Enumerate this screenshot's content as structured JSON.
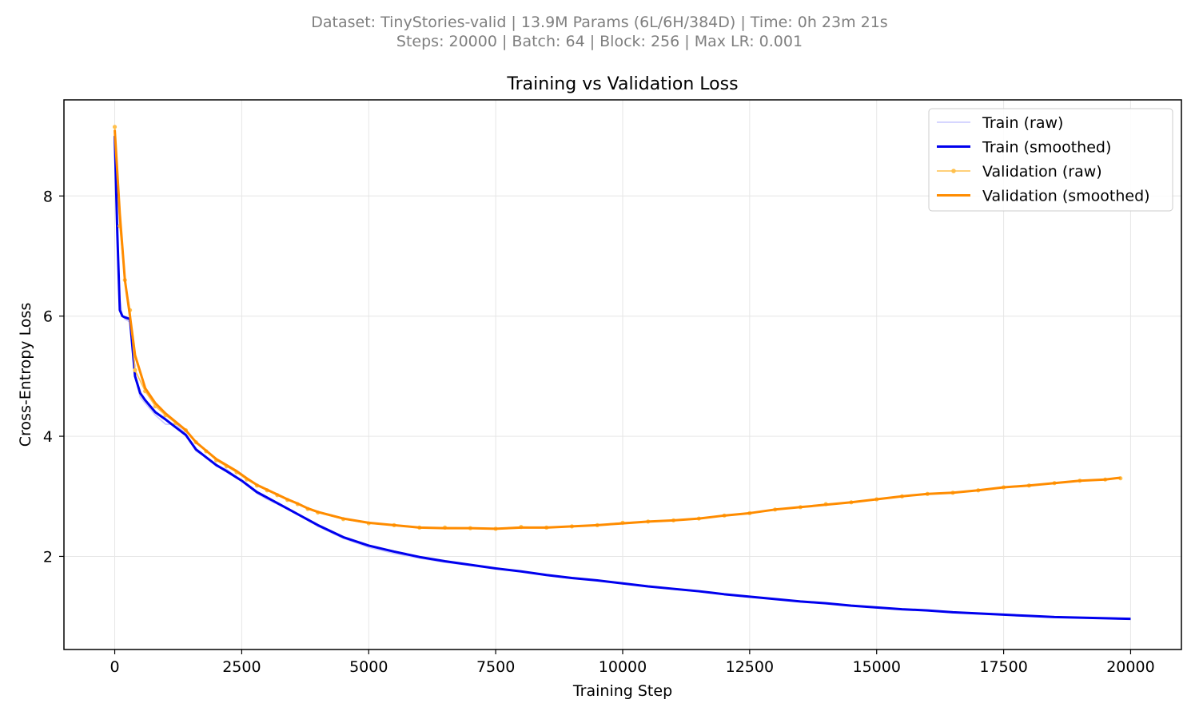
{
  "header": {
    "line1": "Dataset: TinyStories-valid | 13.9M Params (6L/6H/384D) | Time: 0h 23m 21s",
    "line2": "Steps: 20000 | Batch: 64 | Block: 256 | Max LR: 0.001"
  },
  "chart_data": {
    "type": "line",
    "title": "Training vs Validation Loss",
    "xlabel": "Training Step",
    "ylabel": "Cross-Entropy Loss",
    "xlim": [
      -1000,
      21000
    ],
    "ylim": [
      0.45,
      9.6
    ],
    "xticks": [
      0,
      2500,
      5000,
      7500,
      10000,
      12500,
      15000,
      17500,
      20000
    ],
    "xtick_labels": [
      "0",
      "2500",
      "5000",
      "7500",
      "10000",
      "12500",
      "15000",
      "17500",
      "20000"
    ],
    "yticks": [
      2,
      4,
      6,
      8
    ],
    "ytick_labels": [
      "2",
      "4",
      "6",
      "8"
    ],
    "grid": true,
    "legend_position": "top-right",
    "colors": {
      "train_raw": "#c8c8ff",
      "train_smoothed": "#0000ee",
      "val_raw": "#ffc04d",
      "val_smoothed": "#ff8c00"
    },
    "series": [
      {
        "name": "Train (raw)",
        "style": "raw",
        "x": [
          0,
          50,
          100,
          150,
          200,
          300,
          400,
          500,
          600,
          800,
          1000,
          1200,
          1400,
          1600,
          1800,
          2000,
          2200,
          2500,
          2800,
          3000,
          3500,
          4000,
          4500,
          5000,
          5500,
          6000,
          6500,
          7000,
          7500,
          8000,
          8500,
          9000,
          9500,
          10000,
          10500,
          11000,
          11500,
          12000,
          12500,
          13000,
          13500,
          14000,
          14500,
          15000,
          15500,
          16000,
          16500,
          17000,
          17500,
          18000,
          18500,
          19000,
          19500,
          20000
        ],
        "y": [
          9.1,
          7.2,
          6.3,
          6.0,
          5.95,
          5.9,
          5.0,
          4.65,
          4.55,
          4.35,
          4.2,
          4.2,
          4.05,
          3.75,
          3.65,
          3.5,
          3.45,
          3.25,
          3.05,
          2.95,
          2.75,
          2.5,
          2.3,
          2.15,
          2.05,
          1.97,
          1.9,
          1.85,
          1.8,
          1.75,
          1.68,
          1.63,
          1.6,
          1.55,
          1.5,
          1.45,
          1.41,
          1.36,
          1.32,
          1.29,
          1.25,
          1.22,
          1.18,
          1.14,
          1.12,
          1.1,
          1.06,
          1.05,
          1.03,
          1.01,
          0.99,
          0.98,
          0.97,
          0.96
        ]
      },
      {
        "name": "Train (smoothed)",
        "style": "smooth",
        "x": [
          0,
          50,
          100,
          150,
          200,
          300,
          400,
          500,
          600,
          800,
          1000,
          1200,
          1400,
          1600,
          1800,
          2000,
          2200,
          2500,
          2800,
          3000,
          3500,
          4000,
          4500,
          5000,
          5500,
          6000,
          6500,
          7000,
          7500,
          8000,
          8500,
          9000,
          9500,
          10000,
          10500,
          11000,
          11500,
          12000,
          12500,
          13000,
          13500,
          14000,
          14500,
          15000,
          15500,
          16000,
          16500,
          17000,
          17500,
          18000,
          18500,
          19000,
          19500,
          20000
        ],
        "y": [
          9.0,
          7.4,
          6.1,
          6.0,
          5.98,
          5.95,
          5.0,
          4.72,
          4.6,
          4.4,
          4.28,
          4.15,
          4.02,
          3.78,
          3.65,
          3.52,
          3.42,
          3.26,
          3.07,
          2.98,
          2.75,
          2.52,
          2.32,
          2.18,
          2.08,
          1.99,
          1.92,
          1.86,
          1.8,
          1.75,
          1.69,
          1.64,
          1.6,
          1.55,
          1.5,
          1.46,
          1.42,
          1.37,
          1.33,
          1.29,
          1.25,
          1.22,
          1.18,
          1.15,
          1.12,
          1.1,
          1.07,
          1.05,
          1.03,
          1.01,
          0.99,
          0.98,
          0.97,
          0.96
        ]
      },
      {
        "name": "Validation (raw)",
        "style": "raw-markers",
        "x": [
          0,
          100,
          200,
          300,
          400,
          600,
          800,
          1000,
          1200,
          1400,
          1600,
          1800,
          2000,
          2200,
          2400,
          2600,
          2800,
          3000,
          3200,
          3400,
          3600,
          3800,
          4000,
          4500,
          5000,
          5500,
          6000,
          6500,
          7000,
          7500,
          8000,
          8500,
          9000,
          9500,
          10000,
          10500,
          11000,
          11500,
          12000,
          12500,
          13000,
          13500,
          14000,
          14500,
          15000,
          15500,
          16000,
          16500,
          17000,
          17500,
          18000,
          18500,
          19000,
          19500,
          19800
        ],
        "y": [
          9.15,
          7.5,
          6.6,
          6.1,
          5.1,
          4.75,
          4.5,
          4.35,
          4.22,
          4.1,
          3.9,
          3.75,
          3.6,
          3.5,
          3.4,
          3.28,
          3.18,
          3.1,
          3.02,
          2.94,
          2.87,
          2.79,
          2.73,
          2.62,
          2.55,
          2.52,
          2.48,
          2.48,
          2.47,
          2.46,
          2.49,
          2.48,
          2.5,
          2.52,
          2.56,
          2.58,
          2.6,
          2.63,
          2.68,
          2.72,
          2.78,
          2.82,
          2.87,
          2.9,
          2.95,
          3.0,
          3.04,
          3.06,
          3.1,
          3.15,
          3.18,
          3.22,
          3.26,
          3.28,
          3.3
        ]
      },
      {
        "name": "Validation (smoothed)",
        "style": "smooth",
        "x": [
          0,
          100,
          200,
          300,
          400,
          600,
          800,
          1000,
          1200,
          1400,
          1600,
          1800,
          2000,
          2200,
          2400,
          2600,
          2800,
          3000,
          3200,
          3400,
          3600,
          3800,
          4000,
          4500,
          5000,
          5500,
          6000,
          6500,
          7000,
          7500,
          8000,
          8500,
          9000,
          9500,
          10000,
          10500,
          11000,
          11500,
          12000,
          12500,
          13000,
          13500,
          14000,
          14500,
          15000,
          15500,
          16000,
          16500,
          17000,
          17500,
          18000,
          18500,
          19000,
          19500,
          19800
        ],
        "y": [
          9.1,
          7.7,
          6.6,
          6.0,
          5.35,
          4.8,
          4.55,
          4.38,
          4.24,
          4.1,
          3.9,
          3.76,
          3.62,
          3.52,
          3.42,
          3.3,
          3.19,
          3.11,
          3.03,
          2.95,
          2.88,
          2.8,
          2.74,
          2.63,
          2.56,
          2.52,
          2.48,
          2.47,
          2.47,
          2.46,
          2.48,
          2.48,
          2.5,
          2.52,
          2.55,
          2.58,
          2.6,
          2.63,
          2.68,
          2.72,
          2.78,
          2.82,
          2.86,
          2.9,
          2.95,
          3.0,
          3.04,
          3.06,
          3.1,
          3.15,
          3.18,
          3.22,
          3.26,
          3.28,
          3.31
        ]
      }
    ]
  }
}
